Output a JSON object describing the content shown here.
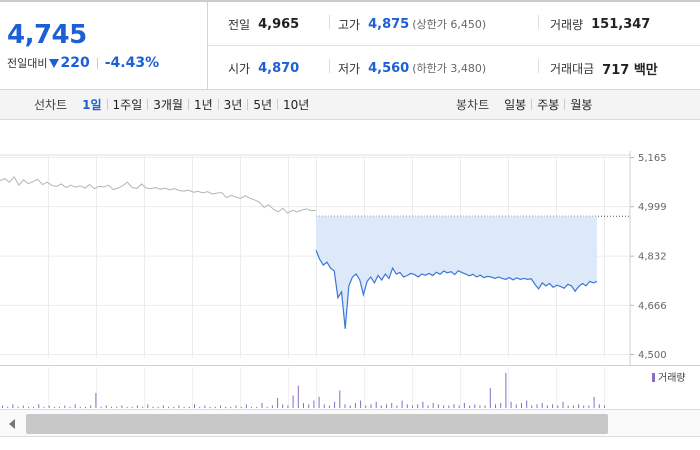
{
  "quote": {
    "price": "4,745",
    "change_label": "전일대비",
    "change_amount": "220",
    "change_rate": "-4.43%",
    "prev_close_label": "전일",
    "prev_close": "4,965",
    "high_label": "고가",
    "high": "4,875",
    "upper_limit": "(상한가 6,450)",
    "volume_label": "거래량",
    "volume": "151,347",
    "open_label": "시가",
    "open": "4,870",
    "low_label": "저가",
    "low": "4,560",
    "lower_limit": "(하한가 3,480)",
    "amount_label": "거래대금",
    "amount": "717 백만"
  },
  "tabs": {
    "line_label": "선차트",
    "line_periods": [
      "1일",
      "1주일",
      "3개월",
      "1년",
      "3년",
      "5년",
      "10년"
    ],
    "active_line_period": "1일",
    "candle_label": "봉차트",
    "candle_periods": [
      "일봉",
      "주봉",
      "월봉"
    ]
  },
  "colors": {
    "accent": "#1d5fd6",
    "today_line": "#3a78d8",
    "today_fill": "#dde9f8",
    "prior_line": "#b5b5b5",
    "volume_bar": "#8a6cc0"
  },
  "chart_data": {
    "type": "line",
    "y_axis_ticks": [
      5165,
      4999,
      4832,
      4666,
      4500
    ],
    "ylim": [
      4500,
      5165
    ],
    "prev_close": 4965,
    "y_axis_position": "right",
    "grid": true,
    "legend": "거래량",
    "series": [
      {
        "values": [
          5085,
          5092,
          5080,
          5098,
          5070,
          5088,
          5075,
          5082,
          5090,
          5072,
          5080,
          5069,
          5066,
          5074,
          5062,
          5070,
          5063,
          5068,
          5060,
          5072,
          5058,
          5066,
          5064,
          5070,
          5055,
          5060,
          5068,
          5080,
          5062,
          5059,
          5074,
          5060,
          5058,
          5062,
          5056,
          5060,
          5054,
          5058,
          5052,
          5050,
          5053,
          5046,
          5049,
          5044,
          5048,
          5040,
          5043,
          5045,
          5028,
          5035,
          5030,
          5025,
          5034,
          5026,
          5020,
          5012,
          4995,
          5004,
          4988,
          4980,
          4992,
          4975,
          4985,
          4980,
          4986,
          4990,
          4984,
          4985
        ]
      },
      {
        "values": [
          4850,
          4820,
          4800,
          4810,
          4790,
          4780,
          4690,
          4710,
          4585,
          4730,
          4760,
          4770,
          4750,
          4700,
          4745,
          4760,
          4740,
          4765,
          4750,
          4770,
          4755,
          4790,
          4770,
          4775,
          4760,
          4765,
          4772,
          4768,
          4760,
          4770,
          4766,
          4772,
          4765,
          4776,
          4769,
          4780,
          4774,
          4778,
          4768,
          4781,
          4775,
          4770,
          4764,
          4769,
          4760,
          4766,
          4758,
          4762,
          4760,
          4755,
          4760,
          4755,
          4752,
          4758,
          4750,
          4757,
          4752,
          4755,
          4752,
          4754,
          4735,
          4720,
          4740,
          4730,
          4738,
          4725,
          4732,
          4728,
          4722,
          4735,
          4730,
          4712,
          4728,
          4738,
          4730,
          4745,
          4740,
          4745
        ]
      }
    ],
    "volume": [
      2,
      1,
      3,
      1,
      2,
      1,
      1,
      3,
      1,
      2,
      1,
      1,
      2,
      1,
      3,
      1,
      1,
      2,
      12,
      1,
      2,
      1,
      1,
      2,
      1,
      1,
      2,
      1,
      3,
      1,
      1,
      2,
      1,
      1,
      2,
      1,
      1,
      3,
      1,
      2,
      1,
      1,
      2,
      1,
      1,
      2,
      1,
      3,
      1,
      1,
      4,
      1,
      2,
      8,
      3,
      2,
      10,
      18,
      4,
      3,
      6,
      9,
      3,
      2,
      5,
      14,
      3,
      2,
      4,
      6,
      2,
      3,
      5,
      2,
      3,
      4,
      2,
      6,
      3,
      2,
      3,
      5,
      2,
      4,
      3,
      2,
      2,
      3,
      2,
      4,
      2,
      3,
      2,
      2,
      16,
      3,
      4,
      28,
      5,
      3,
      4,
      6,
      2,
      3,
      4,
      2,
      3,
      2,
      5,
      2,
      2,
      3,
      2,
      2,
      9,
      3,
      2
    ]
  }
}
